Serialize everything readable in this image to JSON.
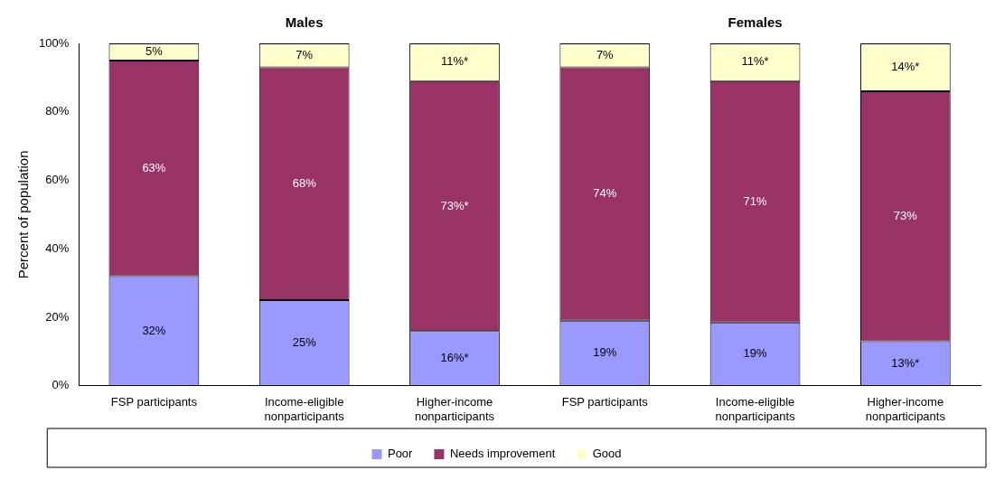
{
  "chart_data": {
    "type": "bar",
    "stacked": true,
    "ylabel": "Percent of population",
    "annotations": [
      "Males",
      "Females"
    ],
    "categories": [
      "FSP participants",
      "Income-eligible nonparticipants",
      "Higher-income nonparticipants",
      "FSP participants",
      "Income-eligible nonparticipants",
      "Higher-income nonparticipants"
    ],
    "series": [
      {
        "name": "Poor",
        "color": "#9999ff",
        "values": [
          32,
          25,
          16,
          19,
          18.5,
          13
        ],
        "value_labels": [
          "32%",
          "25%",
          "16%*",
          "19%",
          "19%",
          "13%*"
        ]
      },
      {
        "name": "Needs improvement",
        "color": "#993366",
        "values": [
          63,
          68,
          73,
          74,
          70.5,
          73
        ],
        "value_labels": [
          "63%",
          "68%",
          "73%*",
          "74%",
          "71%",
          "73%"
        ]
      },
      {
        "name": "Good",
        "color": "#ffffcc",
        "values": [
          5,
          7,
          11,
          7,
          11,
          14
        ],
        "value_labels": [
          "5%",
          "7%",
          "11%*",
          "7%",
          "11%*",
          "14%*"
        ]
      }
    ],
    "ylim": [
      0,
      100
    ],
    "yticks": [
      {
        "value": 0,
        "label": "0%"
      },
      {
        "value": 20,
        "label": "20%"
      },
      {
        "value": 40,
        "label": "40%"
      },
      {
        "value": 60,
        "label": "60%"
      },
      {
        "value": 80,
        "label": "80%"
      },
      {
        "value": 100,
        "label": "100%"
      }
    ],
    "grid": false,
    "legend": "bottom"
  }
}
